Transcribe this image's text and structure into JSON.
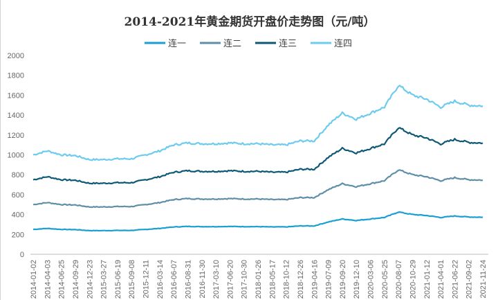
{
  "chart_data": {
    "type": "line",
    "title": "2014-2021年黄金期货开盘价走势图（元/吨）",
    "xlabel": "",
    "ylabel": "",
    "ylim": [
      0,
      2000
    ],
    "yticks": [
      0,
      200,
      400,
      600,
      800,
      1000,
      1200,
      1400,
      1600,
      1800,
      2000
    ],
    "grid": false,
    "legend_position": "top",
    "x": [
      "2014-01-02",
      "2014-04-03",
      "2014-06-25",
      "2014-09-29",
      "2014-12-23",
      "2015-03-27",
      "2015-06-19",
      "2015-09-08",
      "2015-12-11",
      "2016-03-14",
      "2016-06-07",
      "2016-08-31",
      "2016-11-30",
      "2017-03-10",
      "2017-06-20",
      "2017-10-30",
      "2018-01-26",
      "2018-05-17",
      "2018-10-12",
      "2018-12-26",
      "2019-04-16",
      "2019-07-09",
      "2019-09-20",
      "2019-12-10",
      "2020-03-06",
      "2020-05-25",
      "2020-08-07",
      "2020-10-29",
      "2021-01-12",
      "2021-04-01",
      "2021-06-22",
      "2021-09-02",
      "2021-11-24"
    ],
    "series": [
      {
        "name": "连一",
        "color": "#1a9fd2",
        "values": [
          250,
          260,
          250,
          248,
          238,
          238,
          240,
          240,
          250,
          260,
          275,
          280,
          278,
          278,
          280,
          278,
          278,
          275,
          275,
          285,
          285,
          325,
          355,
          340,
          355,
          370,
          425,
          400,
          390,
          370,
          385,
          375,
          373
        ]
      },
      {
        "name": "连二",
        "color": "#5f8ea8",
        "values": [
          500,
          520,
          500,
          496,
          476,
          476,
          480,
          480,
          500,
          520,
          550,
          560,
          556,
          556,
          560,
          556,
          556,
          550,
          550,
          570,
          570,
          650,
          710,
          680,
          710,
          740,
          850,
          800,
          780,
          740,
          770,
          750,
          746
        ]
      },
      {
        "name": "连三",
        "color": "#0d5876",
        "values": [
          750,
          780,
          750,
          744,
          714,
          714,
          720,
          720,
          750,
          780,
          825,
          840,
          834,
          834,
          840,
          834,
          834,
          825,
          825,
          855,
          855,
          975,
          1065,
          1020,
          1065,
          1110,
          1275,
          1200,
          1170,
          1110,
          1155,
          1125,
          1119
        ]
      },
      {
        "name": "连四",
        "color": "#6ccbee",
        "values": [
          1000,
          1040,
          1000,
          992,
          952,
          952,
          960,
          960,
          1000,
          1040,
          1100,
          1120,
          1112,
          1112,
          1120,
          1112,
          1112,
          1100,
          1100,
          1140,
          1140,
          1300,
          1420,
          1360,
          1420,
          1480,
          1700,
          1600,
          1560,
          1480,
          1540,
          1500,
          1492
        ]
      }
    ]
  }
}
